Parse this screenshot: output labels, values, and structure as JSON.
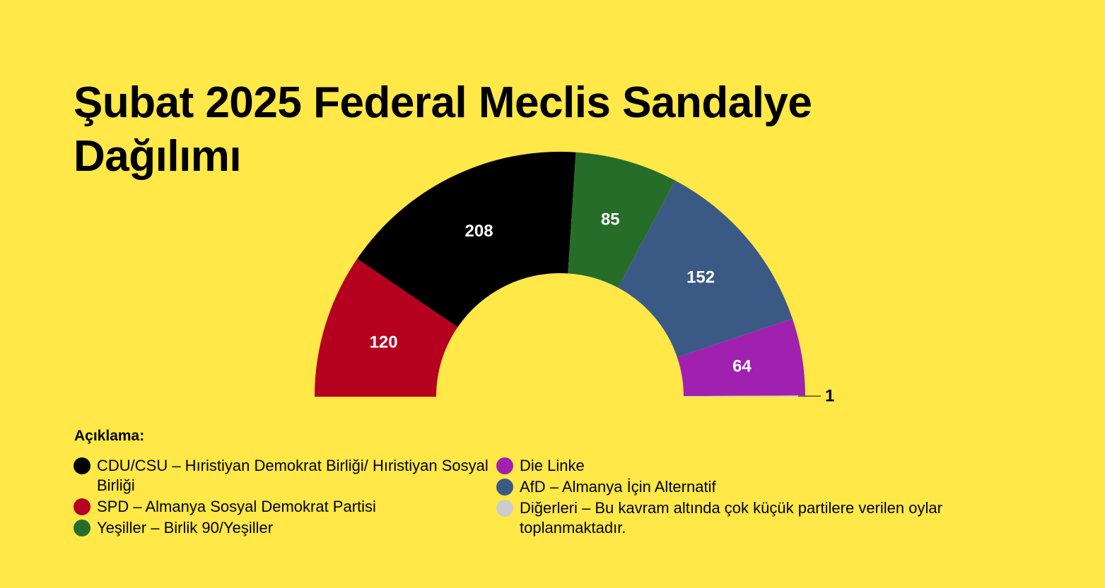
{
  "title": "Şubat 2025 Federal Meclis Sandalye Dağılımı",
  "legend": {
    "title": "Açıklama:",
    "left": [
      {
        "label": "CDU/CSU – Hıristiyan Demokrat Birliği/ Hıristiyan Sosyal Birliği",
        "color": "#000000"
      },
      {
        "label": "SPD – Almanya Sosyal Demokrat Partisi",
        "color": "#B50020"
      },
      {
        "label": "Yeşiller – Birlik 90/Yeşiller",
        "color": "#266D2A"
      }
    ],
    "right": [
      {
        "label": "Die Linke",
        "color": "#A020B0"
      },
      {
        "label": "AfD – Almanya İçin Alternatif",
        "color": "#3A5A85"
      },
      {
        "label": "Diğerleri – Bu kavram altında çok küçük partilere verilen oylar toplanmaktadır.",
        "color": "#CCCCCC"
      }
    ]
  },
  "chart_data": {
    "type": "pie",
    "variant": "half-donut",
    "categories": [
      "SPD",
      "CDU/CSU",
      "Yeşiller",
      "AfD",
      "Die Linke",
      "Diğerleri"
    ],
    "values": [
      120,
      208,
      85,
      152,
      64,
      1
    ],
    "labels": [
      "120",
      "208",
      "85",
      "152",
      "64",
      "1"
    ],
    "colors": [
      "#B50020",
      "#000000",
      "#266D2A",
      "#3A5A85",
      "#A020B0",
      "#CCCCCC"
    ]
  }
}
